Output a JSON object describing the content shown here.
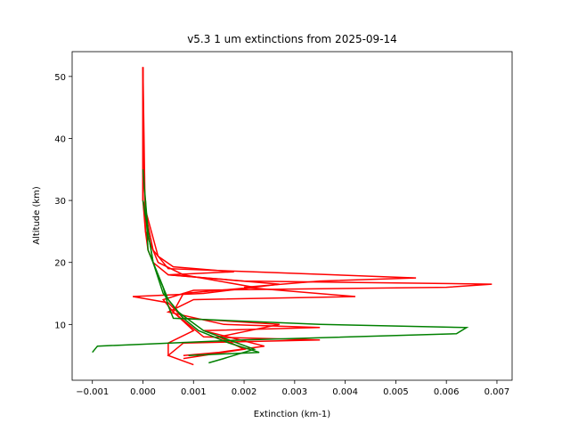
{
  "chart_data": {
    "type": "line",
    "title": "v5.3 1 um extinctions from 2025-09-14",
    "x_label": "Extinction (km-1)",
    "y_label": "Altitude (km)",
    "xlim": [
      -0.0014,
      0.0073
    ],
    "ylim": [
      1,
      54
    ],
    "xticks": [
      {
        "value": -0.001,
        "label": "−0.001"
      },
      {
        "value": 0,
        "label": "0.000"
      },
      {
        "value": 0.001,
        "label": "0.001"
      },
      {
        "value": 0.002,
        "label": "0.002"
      },
      {
        "value": 0.003,
        "label": "0.003"
      },
      {
        "value": 0.004,
        "label": "0.004"
      },
      {
        "value": 0.005,
        "label": "0.005"
      },
      {
        "value": 0.006,
        "label": "0.006"
      },
      {
        "value": 0.007,
        "label": "0.007"
      }
    ],
    "yticks": [
      10,
      20,
      30,
      40,
      50
    ],
    "series": [
      {
        "color": "#ff0000",
        "x": [
          0,
          0,
          0,
          5e-05,
          0.0001,
          0.0002,
          0.0005,
          0.002,
          0.0069,
          0.006,
          0.001,
          0.0004,
          0.0006,
          0.0009,
          0.0012,
          0.0035,
          0.0008,
          0.0005,
          0.001
        ],
        "y": [
          51.5,
          40,
          30,
          25,
          22,
          20,
          18,
          17,
          16.5,
          16,
          15.5,
          14,
          12,
          10,
          8,
          7.5,
          7,
          5,
          3.5
        ]
      },
      {
        "color": "#ff0000",
        "x": [
          0,
          0,
          0.0002,
          0.0005,
          0.0054,
          0.0035,
          0.002,
          0.0042,
          0.001,
          0.0005,
          0.0016,
          0.0035,
          0.0012,
          0.0024,
          0.0015,
          0.0008
        ],
        "y": [
          51.5,
          30,
          22,
          19,
          17.5,
          17,
          16,
          14.5,
          14,
          12,
          10,
          9.5,
          9,
          6.5,
          5.5,
          5
        ]
      },
      {
        "color": "#ff0000",
        "x": [
          0,
          0,
          0.0003,
          0.0006,
          0.0018,
          0.0005,
          0.0027,
          0.0012,
          -0.0002,
          0.0005,
          0.0008,
          0.0027,
          0.0015,
          0.002,
          0.0008
        ],
        "y": [
          51.5,
          30,
          21,
          19.3,
          18.5,
          18,
          16.5,
          15,
          14.5,
          13.5,
          11,
          10,
          8,
          6,
          4.5
        ]
      },
      {
        "color": "#ff0000",
        "x": [
          0,
          5e-05,
          0.0003,
          0.0008,
          0.0022,
          0.0008,
          0.0006,
          0.001,
          0.0005,
          0.0005
        ],
        "y": [
          51.5,
          25,
          20,
          18,
          16,
          15,
          12,
          9,
          7,
          5
        ]
      },
      {
        "color": "#008000",
        "x": [
          0,
          0.0001,
          0.0002,
          0.0004,
          0.0005,
          0.0006,
          0.0035,
          0.0064,
          0.0062,
          0.002,
          -0.0009,
          -0.001
        ],
        "y": [
          35,
          25,
          20,
          16,
          13,
          11,
          10,
          9.5,
          8.5,
          7.5,
          6.5,
          5.5
        ]
      },
      {
        "color": "#008000",
        "x": [
          5e-05,
          0.0001,
          0.0003,
          0.0005,
          0.0008,
          0.0011,
          0.0017,
          0.0023,
          0.0009
        ],
        "y": [
          30,
          22,
          18,
          14,
          11,
          9,
          7,
          5.5,
          5
        ]
      },
      {
        "color": "#008000",
        "x": [
          0,
          0.0002,
          0.0004,
          0.0007,
          0.0012,
          0.0022,
          0.0016,
          0.0013
        ],
        "y": [
          30,
          20,
          15,
          12,
          9,
          6,
          4.5,
          3.8
        ]
      }
    ]
  }
}
